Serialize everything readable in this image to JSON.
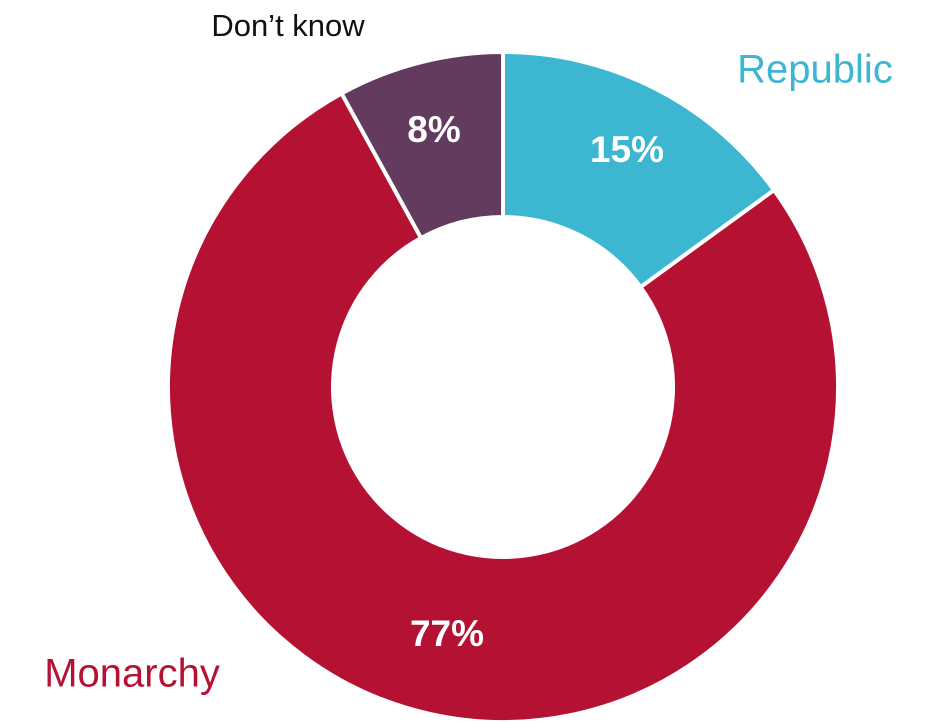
{
  "chart_data": {
    "type": "donut",
    "categories": [
      "Republic",
      "Monarchy",
      "Don’t know"
    ],
    "values": [
      15,
      77,
      8
    ],
    "value_labels": [
      "15%",
      "77%",
      "8%"
    ],
    "colors": [
      "#3db6d1",
      "#b51233",
      "#623b5e"
    ]
  }
}
